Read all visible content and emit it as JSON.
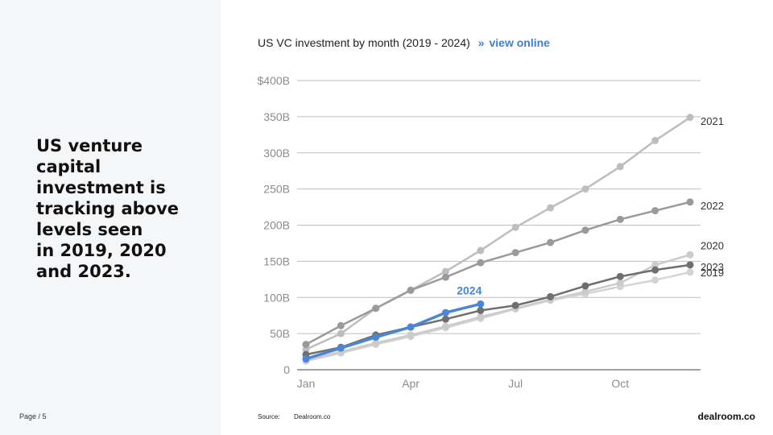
{
  "headline": "US venture\ncapital\ninvestment is\ntracking above\nlevels seen\nin 2019, 2020\nand 2023.",
  "page_label": "Page / 5",
  "chart_title": "US VC investment by month (2019 - 2024)",
  "view_online_label": "view online",
  "view_online_chevron": "»",
  "source_label": "Source:",
  "source_value": "Dealroom.co",
  "brand": "dealroom.co",
  "colors": {
    "2019": "#d4d4d4",
    "2020": "#cbcbcb",
    "2021": "#bdbdbd",
    "2022": "#9a9a9a",
    "2023": "#6f6f6f",
    "2024": "#4a86d8",
    "grid": "#bfbfbf",
    "tick": "#8c8c8c"
  },
  "chart_data": {
    "type": "line",
    "title": "US VC investment by month (2019 - 2024)",
    "xlabel": "",
    "ylabel": "",
    "x_ticks": [
      "Jan",
      "Apr",
      "Jul",
      "Oct"
    ],
    "x_tick_months": [
      1,
      4,
      7,
      10
    ],
    "y_ticks": [
      "0",
      "50B",
      "100B",
      "150B",
      "200B",
      "250B",
      "300B",
      "350B",
      "$400B"
    ],
    "y_tick_values": [
      0,
      50,
      100,
      150,
      200,
      250,
      300,
      350,
      400
    ],
    "xlim": [
      1,
      12
    ],
    "ylim": [
      0,
      400
    ],
    "grid": true,
    "legend": "direct labels at line ends",
    "months": [
      1,
      2,
      3,
      4,
      5,
      6,
      7,
      8,
      9,
      10,
      11,
      12
    ],
    "series": [
      {
        "name": "2019",
        "values": [
          12,
          23,
          35,
          46,
          58,
          71,
          84,
          96,
          105,
          115,
          124,
          135
        ]
      },
      {
        "name": "2020",
        "values": [
          13,
          25,
          37,
          48,
          60,
          73,
          85,
          97,
          108,
          120,
          145,
          159
        ]
      },
      {
        "name": "2021",
        "values": [
          28,
          50,
          85,
          110,
          136,
          165,
          197,
          224,
          250,
          281,
          317,
          349
        ]
      },
      {
        "name": "2022",
        "values": [
          35,
          61,
          85,
          110,
          128,
          148,
          162,
          176,
          193,
          208,
          220,
          232
        ]
      },
      {
        "name": "2023",
        "values": [
          21,
          31,
          48,
          59,
          70,
          82,
          89,
          101,
          116,
          129,
          138,
          145
        ]
      },
      {
        "name": "2024",
        "values": [
          15,
          30,
          45,
          59,
          79,
          91
        ]
      }
    ]
  }
}
